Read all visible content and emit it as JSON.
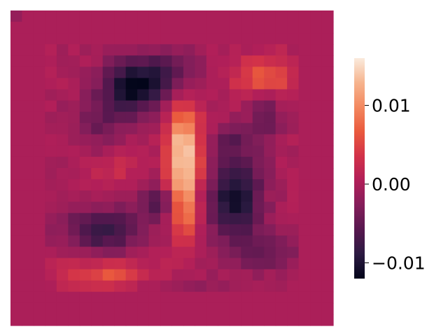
{
  "chart_data": {
    "type": "heatmap",
    "title": "",
    "xlabel": "",
    "ylabel": "",
    "grid_shape": [
      28,
      28
    ],
    "colormap": "rocket",
    "color_stops": [
      "#03051a",
      "#2c1a42",
      "#57184f",
      "#841e5a",
      "#b11f59",
      "#d23249",
      "#ea5a3d",
      "#f3885f",
      "#f6b48e",
      "#faebdd"
    ],
    "vmin": -0.012,
    "vmax": 0.016,
    "colorbar": {
      "ticks": [
        {
          "value": 0.01,
          "label": "0.01"
        },
        {
          "value": 0.0,
          "label": "0.00"
        },
        {
          "value": -0.01,
          "label": "−0.01"
        }
      ]
    },
    "blobs": [
      {
        "r": 6.5,
        "c": 10.0,
        "sr": 1.6,
        "sc": 1.8,
        "a": -0.011
      },
      {
        "r": 5.0,
        "c": 13.0,
        "sr": 1.4,
        "sc": 2.2,
        "a": -0.006
      },
      {
        "r": 9.5,
        "c": 7.0,
        "sr": 1.5,
        "sc": 1.6,
        "a": -0.004
      },
      {
        "r": 12.5,
        "c": 14.5,
        "sr": 3.2,
        "sc": 1.0,
        "a": 0.0155
      },
      {
        "r": 17.5,
        "c": 14.5,
        "sr": 2.0,
        "sc": 0.8,
        "a": 0.006
      },
      {
        "r": 5.5,
        "c": 21.5,
        "sr": 1.3,
        "sc": 1.8,
        "a": 0.008
      },
      {
        "r": 8.5,
        "c": 21.5,
        "sr": 2.0,
        "sc": 1.0,
        "a": -0.005
      },
      {
        "r": 16.0,
        "c": 19.0,
        "sr": 2.6,
        "sc": 1.6,
        "a": -0.011
      },
      {
        "r": 16.5,
        "c": 12.5,
        "sr": 1.2,
        "sc": 1.4,
        "a": -0.006
      },
      {
        "r": 19.0,
        "c": 7.5,
        "sr": 1.3,
        "sc": 2.2,
        "a": -0.009
      },
      {
        "r": 21.0,
        "c": 21.5,
        "sr": 1.3,
        "sc": 2.5,
        "a": -0.004
      },
      {
        "r": 23.0,
        "c": 8.0,
        "sr": 0.9,
        "sc": 3.0,
        "a": 0.006
      },
      {
        "r": 13.5,
        "c": 8.5,
        "sr": 1.0,
        "sc": 1.4,
        "a": 0.0025
      },
      {
        "r": 24.5,
        "c": 13.5,
        "sr": 0.9,
        "sc": 4.0,
        "a": -0.002
      },
      {
        "r": 11.0,
        "c": 18.5,
        "sr": 1.0,
        "sc": 1.0,
        "a": -0.004
      }
    ]
  }
}
